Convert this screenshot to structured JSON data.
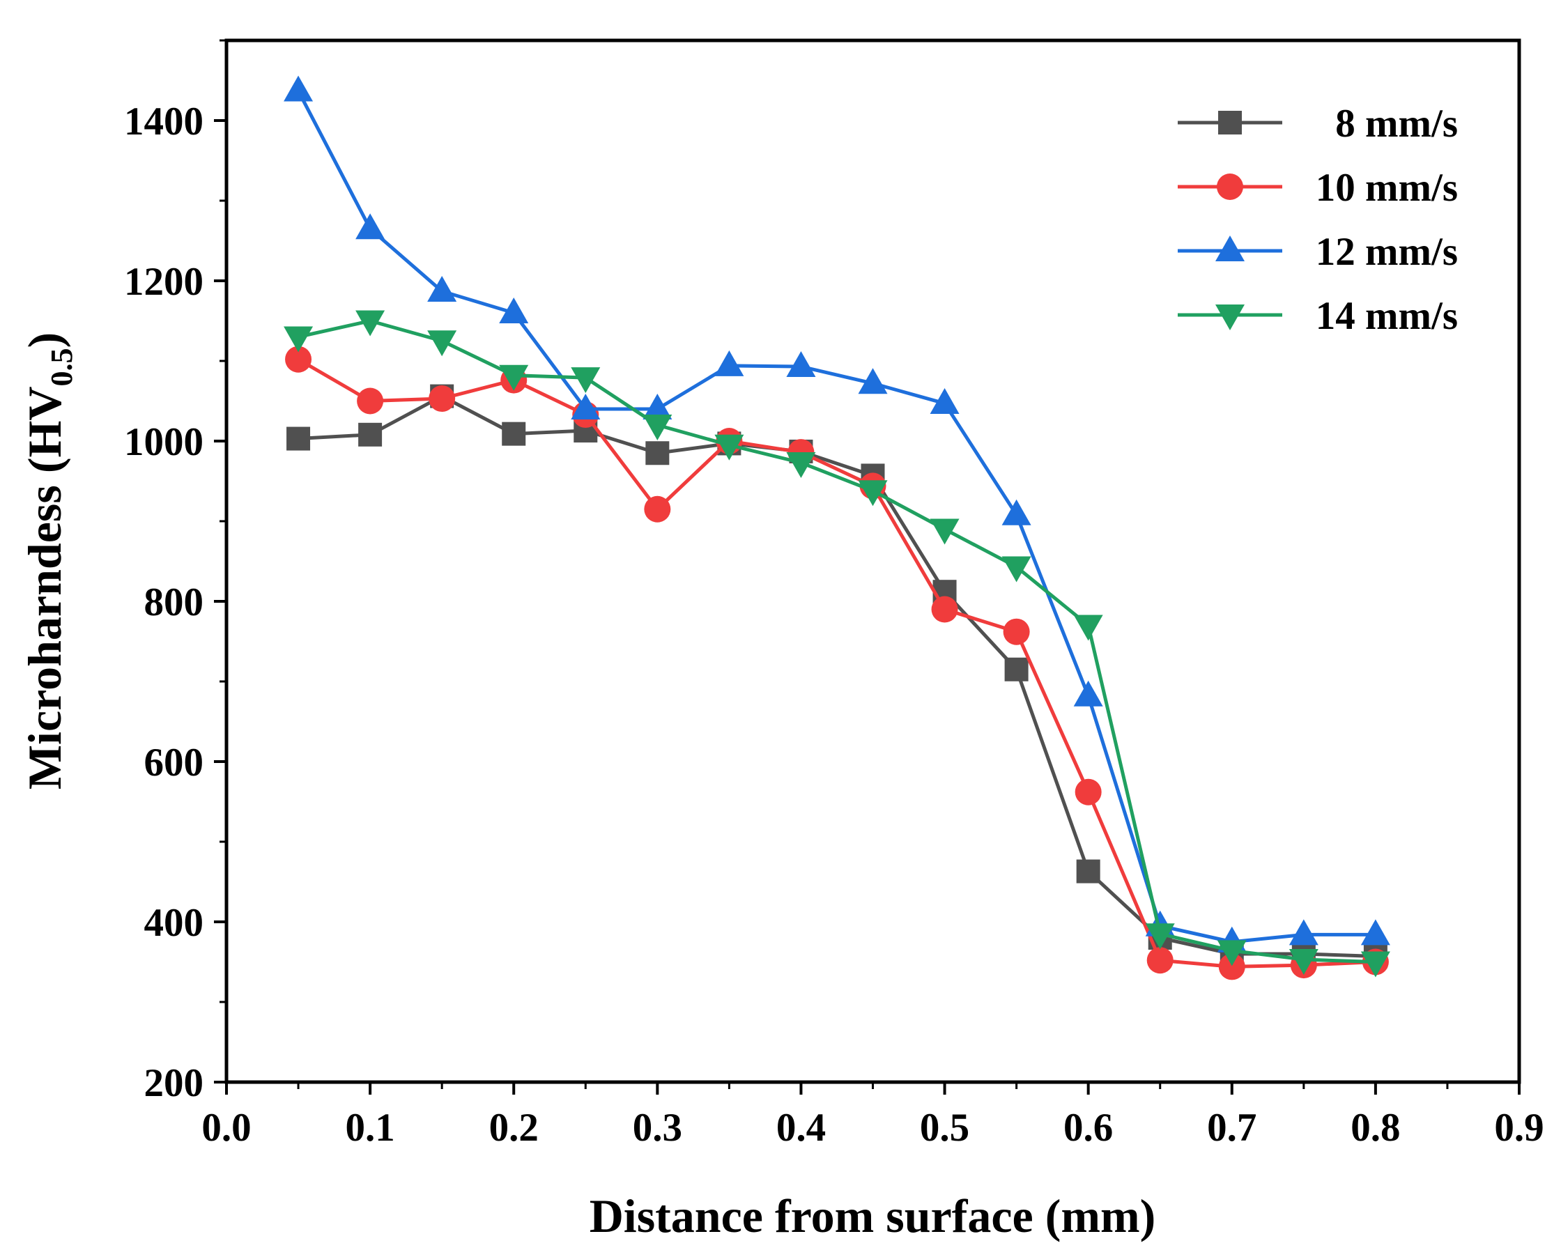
{
  "chart_data": {
    "type": "line",
    "title": "",
    "xlabel": "Distance from surface (mm)",
    "ylabel": {
      "main": "Microharndess (HV",
      "subscript": "0.5",
      "close": ")"
    },
    "xlim": [
      0.0,
      0.9
    ],
    "ylim": [
      200,
      1500
    ],
    "xticks": [
      "0.0",
      "0.1",
      "0.2",
      "0.3",
      "0.4",
      "0.5",
      "0.6",
      "0.7",
      "0.8",
      "0.9"
    ],
    "yticks": [
      "200",
      "400",
      "600",
      "800",
      "1000",
      "1200",
      "1400"
    ],
    "grid": false,
    "legend_position": "top-right",
    "x": [
      0.05,
      0.1,
      0.15,
      0.2,
      0.25,
      0.3,
      0.35,
      0.4,
      0.45,
      0.5,
      0.55,
      0.6,
      0.65,
      0.7,
      0.75,
      0.8
    ],
    "series": [
      {
        "name": "8 mm/s",
        "color": "#505050",
        "marker": "square",
        "values": [
          1003,
          1008,
          1056,
          1009,
          1013,
          985,
          997,
          987,
          957,
          812,
          715,
          463,
          380,
          360,
          360,
          357
        ]
      },
      {
        "name": "10 mm/s",
        "color": "#f03c3c",
        "marker": "circle",
        "values": [
          1102,
          1050,
          1053,
          1076,
          1033,
          915,
          1000,
          986,
          944,
          790,
          762,
          562,
          352,
          344,
          346,
          350
        ]
      },
      {
        "name": "12 mm/s",
        "color": "#1e6fdc",
        "marker": "triangle-up",
        "values": [
          1437,
          1265,
          1187,
          1160,
          1040,
          1040,
          1094,
          1093,
          1072,
          1047,
          908,
          682,
          395,
          375,
          384,
          384
        ]
      },
      {
        "name": "14 mm/s",
        "color": "#20a060",
        "marker": "triangle-down",
        "values": [
          1130,
          1150,
          1125,
          1082,
          1079,
          1020,
          995,
          973,
          938,
          890,
          843,
          770,
          385,
          364,
          353,
          350
        ]
      }
    ]
  }
}
